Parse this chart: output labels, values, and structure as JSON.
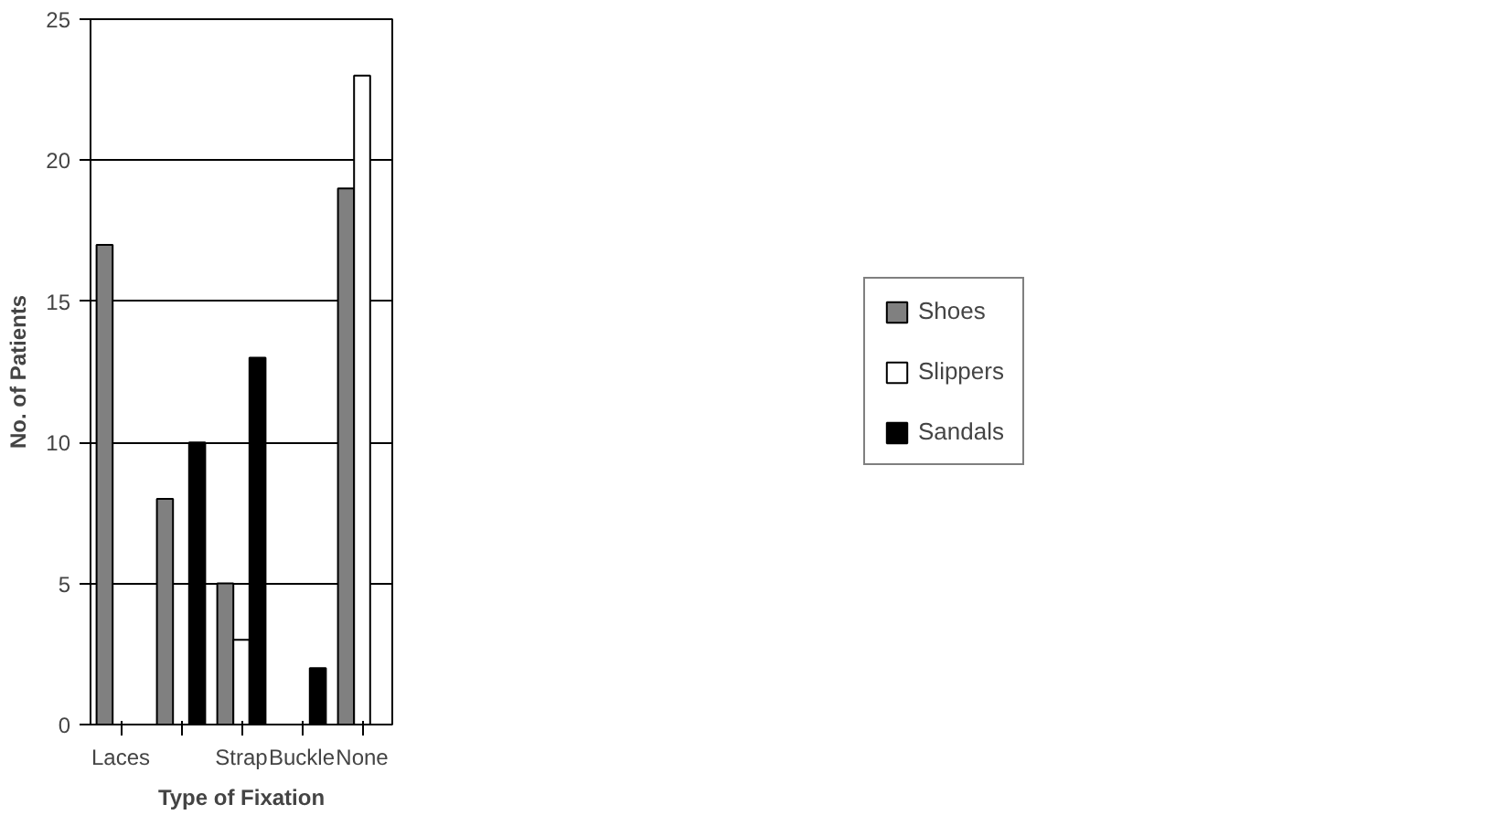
{
  "chart_data": {
    "type": "bar",
    "xlabel": "Type of Fixation",
    "ylabel": "No. of Patients",
    "categories": [
      "Laces",
      null,
      "Strap",
      "Buckle",
      "None"
    ],
    "series": [
      {
        "name": "Shoes",
        "color": "#808080",
        "values": [
          17,
          8,
          5,
          null,
          19
        ]
      },
      {
        "name": "Slippers",
        "color": "#ffffff",
        "values": [
          null,
          null,
          3,
          null,
          23
        ]
      },
      {
        "name": "Sandals",
        "color": "#000000",
        "values": [
          null,
          10,
          13,
          2,
          null
        ]
      }
    ],
    "ylim": [
      0,
      25
    ],
    "yticks": [
      0,
      5,
      10,
      15,
      20,
      25
    ],
    "grid": "y",
    "legend": "right"
  }
}
